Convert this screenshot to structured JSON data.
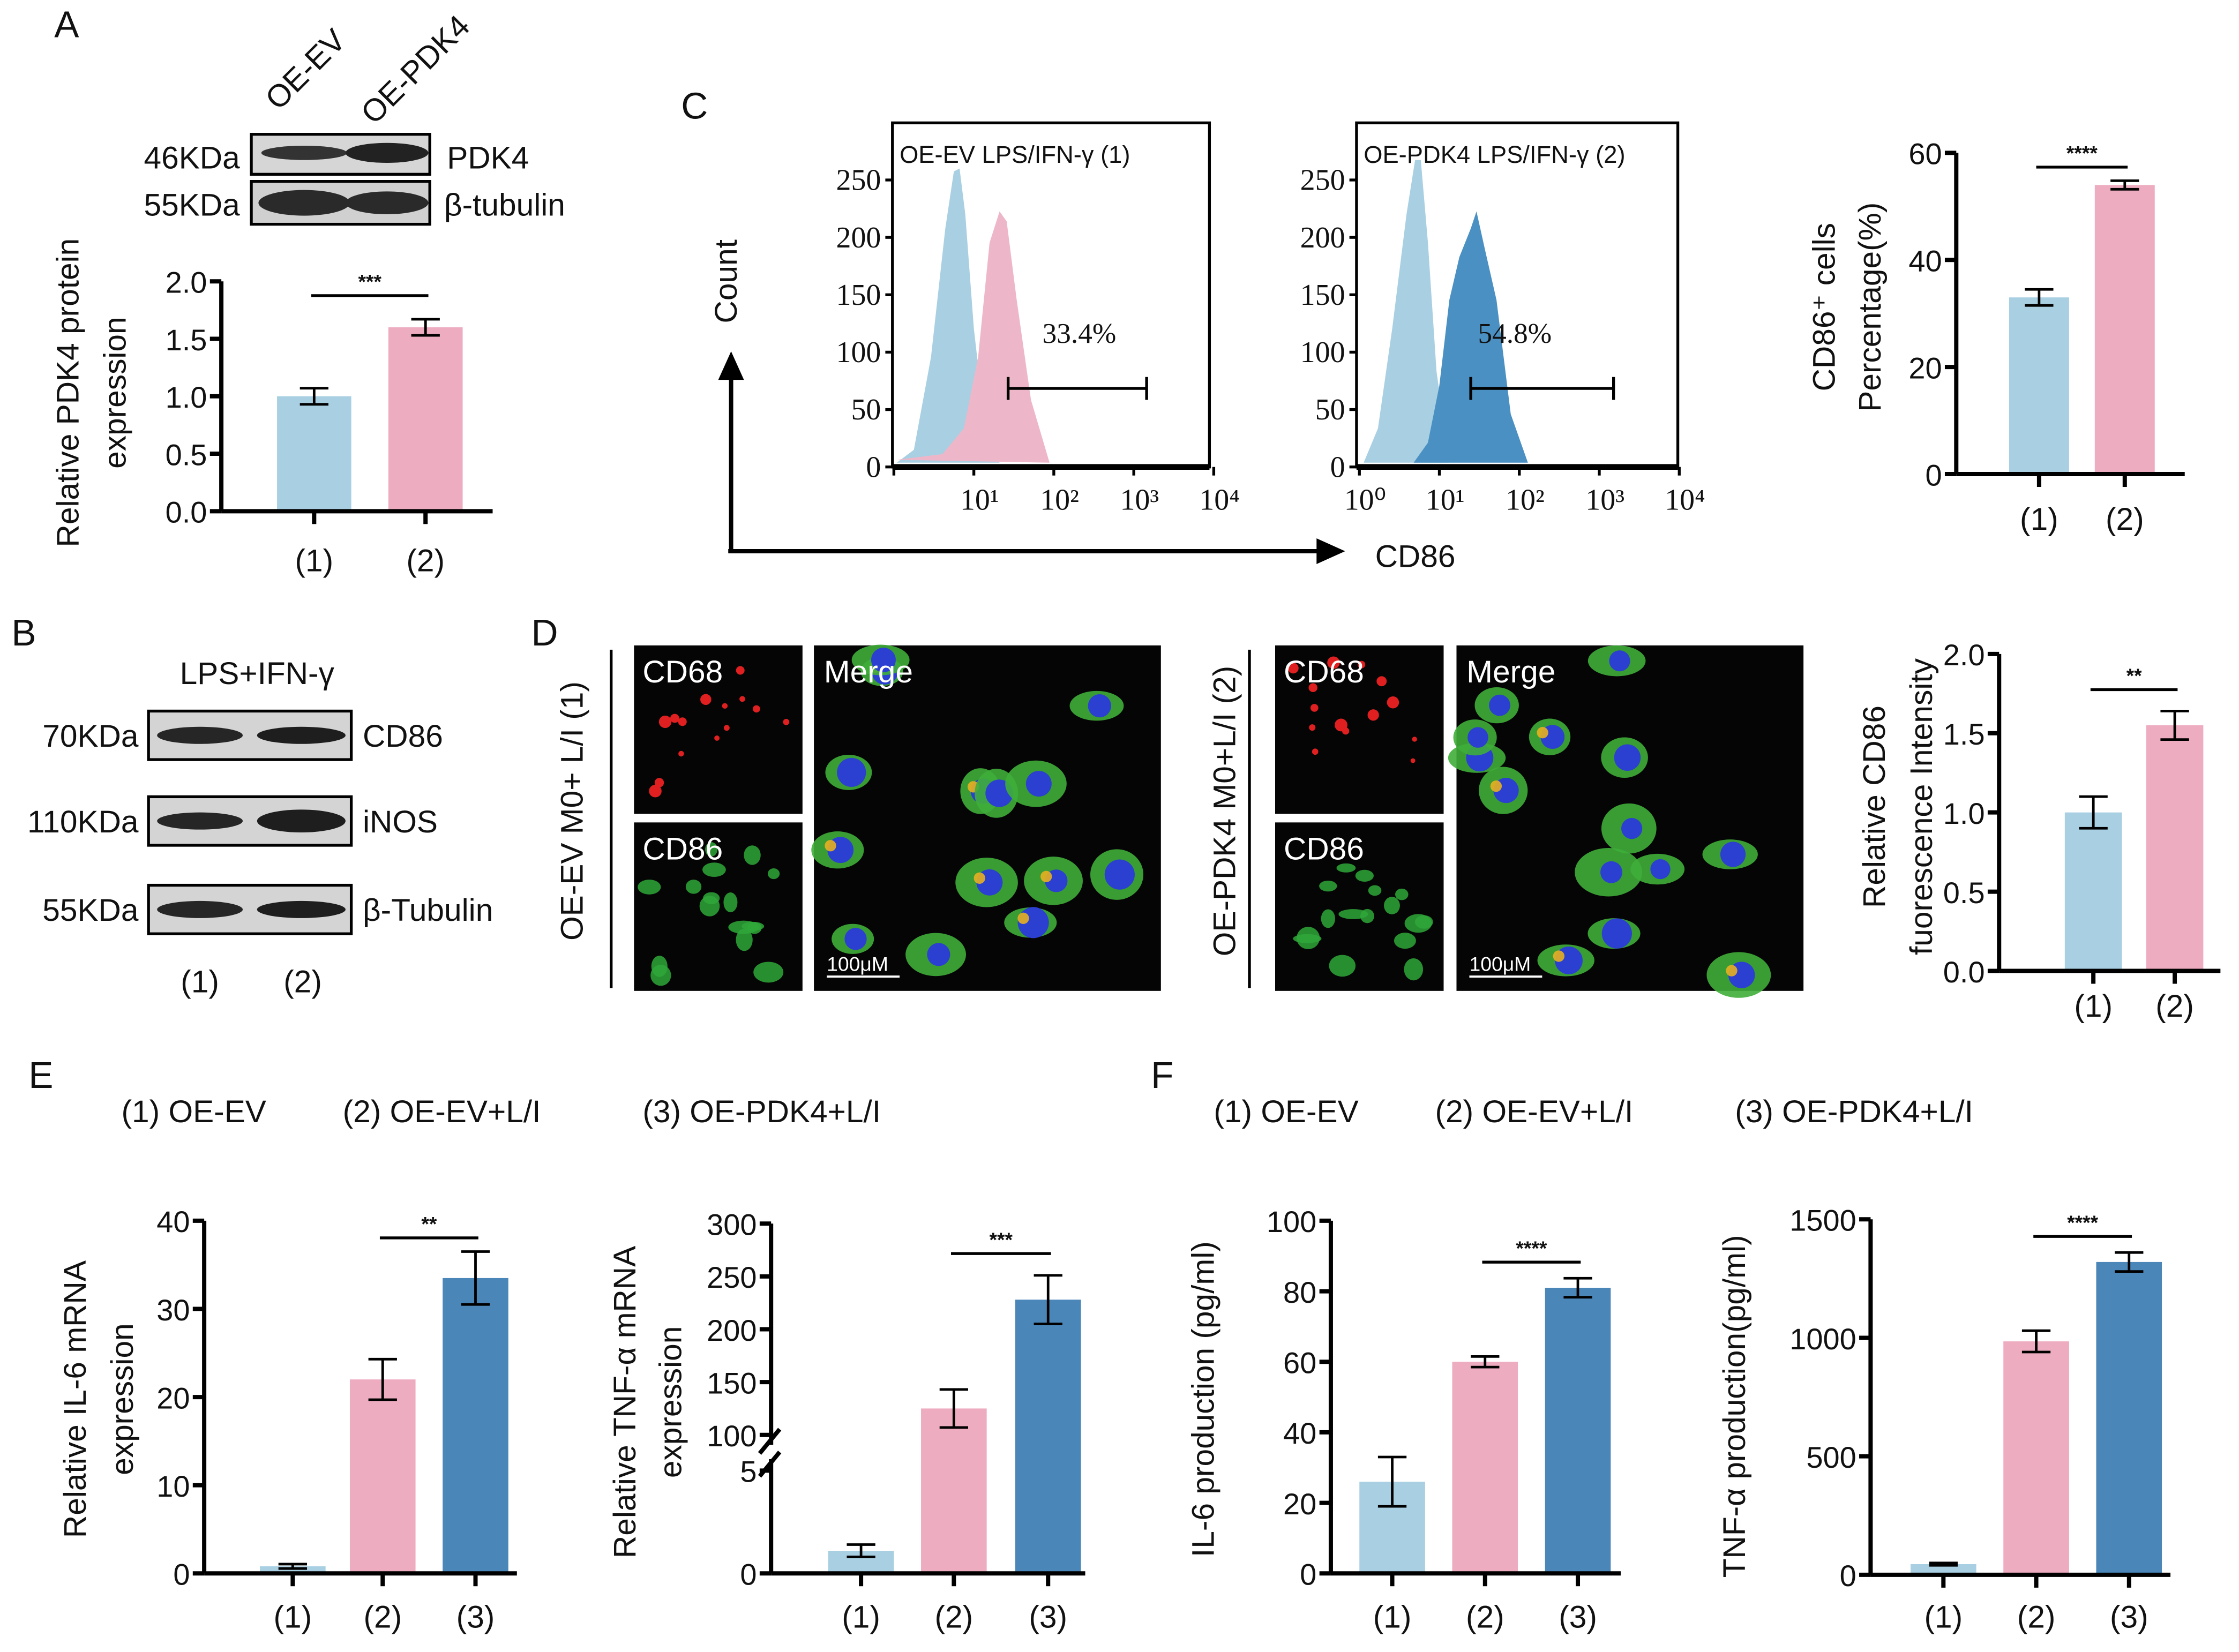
{
  "panel_letters": {
    "a": "A",
    "b": "B",
    "c": "C",
    "d": "D",
    "e": "E",
    "f": "F"
  },
  "colors": {
    "group1": "#a8cfe2",
    "group2": "#eeacc1",
    "group3": "#4a86b8",
    "flow_control": "#a8cfe2"
  },
  "blot_a": {
    "lanes": [
      "OE-EV",
      "OE-PDK4"
    ],
    "rows": [
      {
        "size": "46KDa",
        "protein": "PDK4"
      },
      {
        "size": "55KDa",
        "protein": "β-tubulin"
      }
    ]
  },
  "blot_b": {
    "treatment": "LPS+IFN-γ",
    "rows": [
      {
        "size": "70KDa",
        "protein": "CD86"
      },
      {
        "size": "110KDa",
        "protein": "iNOS"
      },
      {
        "size": "55KDa",
        "protein": "β-Tubulin"
      }
    ],
    "lanes": [
      "(1)",
      "(2)"
    ]
  },
  "flow": {
    "y_axis_label": "Count",
    "x_axis_label": "CD86",
    "y_ticks": [
      "0",
      "50",
      "100",
      "150",
      "200",
      "250"
    ],
    "panels": [
      {
        "title": "OE-EV LPS/IFN-γ (1)",
        "percent": "33.4%",
        "x_ticks": [
          "",
          "10¹",
          "10²",
          "10³",
          "10⁴"
        ]
      },
      {
        "title": "OE-PDK4 LPS/IFN-γ (2)",
        "percent": "54.8%",
        "x_ticks": [
          "10⁰",
          "10¹",
          "10²",
          "10³",
          "10⁴"
        ]
      }
    ]
  },
  "microscopy": {
    "groups": [
      {
        "label": "OE-EV M0+ L/I (1)",
        "channels": [
          "CD68",
          "CD86"
        ],
        "merge": "Merge",
        "scale": "100μM"
      },
      {
        "label": "OE-PDK4 M0+L/I (2)",
        "channels": [
          "CD68",
          "CD86"
        ],
        "merge": "Merge",
        "scale": "100μM"
      }
    ]
  },
  "legend_e": [
    "(1) OE-EV",
    "(2) OE-EV+L/I",
    "(3) OE-PDK4+L/I"
  ],
  "legend_f": [
    "(1) OE-EV",
    "(2) OE-EV+L/I",
    "(3) OE-PDK4+L/I"
  ],
  "chart_data": [
    {
      "id": "A",
      "type": "bar",
      "ylabel": [
        "Relative PDK4 protein",
        "expression"
      ],
      "categories": [
        "(1)",
        "(2)"
      ],
      "values": [
        1.0,
        1.6
      ],
      "errors": [
        0.07,
        0.07
      ],
      "ylim": [
        0,
        2.0
      ],
      "ticks": [
        "0.0",
        "0.5",
        "1.0",
        "1.5",
        "2.0"
      ],
      "significance": {
        "between": [
          0,
          1
        ],
        "label": "***"
      }
    },
    {
      "id": "C",
      "type": "bar",
      "ylabel": [
        "CD86⁺ cells",
        "Percentage(%)"
      ],
      "categories": [
        "(1)",
        "(2)"
      ],
      "values": [
        33,
        54
      ],
      "errors": [
        1.5,
        0.8
      ],
      "ylim": [
        0,
        60
      ],
      "ticks": [
        "0",
        "20",
        "40",
        "60"
      ],
      "significance": {
        "between": [
          0,
          1
        ],
        "label": "****"
      }
    },
    {
      "id": "D",
      "type": "bar",
      "ylabel": [
        "Relative CD86",
        "fuorescence Intensity"
      ],
      "categories": [
        "(1)",
        "(2)"
      ],
      "values": [
        1.0,
        1.55
      ],
      "errors": [
        0.1,
        0.09
      ],
      "ylim": [
        0,
        2.0
      ],
      "ticks": [
        "0.0",
        "0.5",
        "1.0",
        "1.5",
        "2.0"
      ],
      "significance": {
        "between": [
          0,
          1
        ],
        "label": "**"
      }
    },
    {
      "id": "E1",
      "type": "bar",
      "ylabel": [
        "Relative IL-6 mRNA",
        "expression"
      ],
      "categories": [
        "(1)",
        "(2)",
        "(3)"
      ],
      "values": [
        0.8,
        22,
        33.5
      ],
      "errors": [
        0.25,
        2.3,
        3.0
      ],
      "ylim": [
        0,
        40
      ],
      "ticks": [
        "0",
        "10",
        "20",
        "30",
        "40"
      ],
      "significance": {
        "between": [
          1,
          2
        ],
        "label": "**"
      }
    },
    {
      "id": "E2",
      "type": "bar",
      "ylabel": [
        "Relative TNF-α mRNA",
        "expression"
      ],
      "categories": [
        "(1)",
        "(2)",
        "(3)"
      ],
      "values": [
        1.1,
        125,
        228
      ],
      "errors": [
        0.3,
        18,
        23
      ],
      "ylim": [
        0,
        300
      ],
      "axis_break": [
        5,
        100
      ],
      "ticks": [
        "0",
        "5",
        "100",
        "150",
        "200",
        "250",
        "300"
      ],
      "significance": {
        "between": [
          1,
          2
        ],
        "label": "***"
      }
    },
    {
      "id": "F1",
      "type": "bar",
      "ylabel": [
        "IL-6  production (pg/ml)"
      ],
      "categories": [
        "(1)",
        "(2)",
        "(3)"
      ],
      "values": [
        26,
        60,
        81
      ],
      "errors": [
        7,
        1.5,
        2.7
      ],
      "ylim": [
        0,
        100
      ],
      "ticks": [
        "0",
        "20",
        "40",
        "60",
        "80",
        "100"
      ],
      "significance": {
        "between": [
          1,
          2
        ],
        "label": "****"
      }
    },
    {
      "id": "F2",
      "type": "bar",
      "ylabel": [
        "TNF-α  production(pg/ml)"
      ],
      "categories": [
        "(1)",
        "(2)",
        "(3)"
      ],
      "values": [
        45,
        985,
        1320
      ],
      "errors": [
        5,
        45,
        40
      ],
      "ylim": [
        0,
        1500
      ],
      "ticks": [
        "0",
        "500",
        "1000",
        "1500"
      ],
      "significance": {
        "between": [
          1,
          2
        ],
        "label": "****"
      }
    }
  ]
}
